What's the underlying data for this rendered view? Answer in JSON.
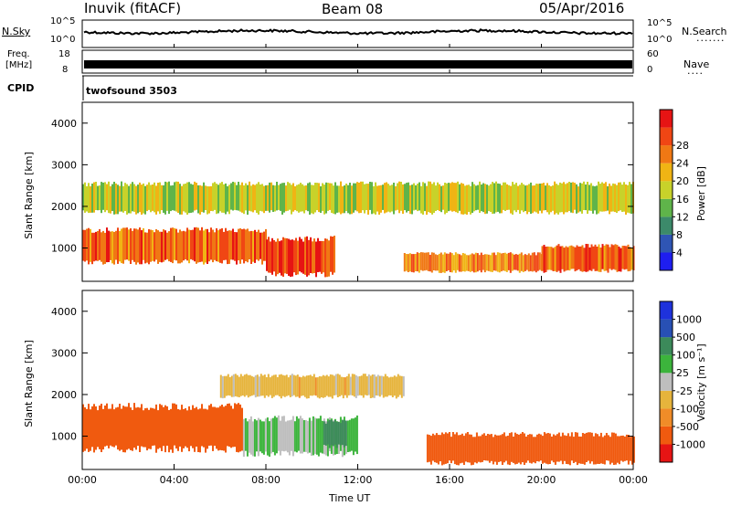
{
  "header": {
    "station": "Inuvik (fitACF)",
    "beam": "Beam 08",
    "date": "05/Apr/2016"
  },
  "panels": {
    "noise": {
      "left_label": "N.Sky",
      "right_label": "N.Search",
      "left_ticks": [
        "10^5",
        "10^0"
      ],
      "right_ticks": [
        "10^5",
        "10^0"
      ]
    },
    "freq": {
      "left_label_1": "Freq.",
      "left_label_2": "[MHz]",
      "right_label": "Nave",
      "left_ticks": [
        "18",
        "8"
      ],
      "right_ticks": [
        "60",
        "0"
      ]
    },
    "cpid": {
      "label": "CPID",
      "program": "twofsound 3503"
    }
  },
  "colors": {
    "power": [
      "#1e1ef0",
      "#2f55b4",
      "#3c8a6a",
      "#5fb44a",
      "#c8d22a",
      "#f0b414",
      "#f07814",
      "#f04614",
      "#e61414"
    ],
    "velocity": [
      "#e61414",
      "#f05a0f",
      "#f08c28",
      "#e6b43c",
      "#bebebe",
      "#3cb43c",
      "#3c8a5a",
      "#2850b4",
      "#1e32dc"
    ]
  },
  "chart_data": [
    {
      "type": "heatmap",
      "title": "",
      "xlabel": "",
      "ylabel": "Slant Range [km]",
      "x_ticks": [
        "00:00",
        "04:00",
        "08:00",
        "12:00",
        "16:00",
        "20:00",
        "00:00"
      ],
      "y_ticks": [
        "1000",
        "2000",
        "3000",
        "4000"
      ],
      "ylim": [
        200,
        4500
      ],
      "colorbar": {
        "label": "Power [dB]",
        "ticks": [
          "4",
          "8",
          "12",
          "16",
          "20",
          "24",
          "28"
        ],
        "range": [
          0,
          32
        ]
      },
      "regions": [
        {
          "t_hours": [
            0,
            8
          ],
          "range_km": [
            600,
            1500
          ],
          "value_db": 26
        },
        {
          "t_hours": [
            8,
            11
          ],
          "range_km": [
            300,
            1300
          ],
          "value_db": 28
        },
        {
          "t_hours": [
            14,
            20
          ],
          "range_km": [
            400,
            900
          ],
          "value_db": 24
        },
        {
          "t_hours": [
            20,
            24
          ],
          "range_km": [
            400,
            1100
          ],
          "value_db": 26
        },
        {
          "t_hours": [
            0,
            24
          ],
          "range_km": [
            1800,
            2600
          ],
          "value_db": 16
        }
      ]
    },
    {
      "type": "heatmap",
      "title": "",
      "xlabel": "Time UT",
      "ylabel": "Slant Range [km]",
      "x_ticks": [
        "00:00",
        "04:00",
        "08:00",
        "12:00",
        "16:00",
        "20:00",
        "00:00"
      ],
      "y_ticks": [
        "1000",
        "2000",
        "3000",
        "4000"
      ],
      "ylim": [
        200,
        4500
      ],
      "colorbar": {
        "label": "Velocity [m s⁻¹]",
        "ticks": [
          "1000",
          "500",
          "100",
          "25",
          "-25",
          "-100",
          "-500",
          "-1000"
        ]
      },
      "regions": [
        {
          "t_hours": [
            0,
            7
          ],
          "range_km": [
            600,
            1800
          ],
          "value_ms": -300
        },
        {
          "t_hours": [
            7,
            12
          ],
          "range_km": [
            500,
            1500
          ],
          "value_ms": 100
        },
        {
          "t_hours": [
            10.5,
            11.5
          ],
          "range_km": [
            700,
            1400
          ],
          "value_ms": 800
        },
        {
          "t_hours": [
            6,
            14
          ],
          "range_km": [
            1900,
            2500
          ],
          "value_ms": 0
        },
        {
          "t_hours": [
            15,
            24
          ],
          "range_km": [
            300,
            1100
          ],
          "value_ms": -300
        }
      ]
    }
  ]
}
